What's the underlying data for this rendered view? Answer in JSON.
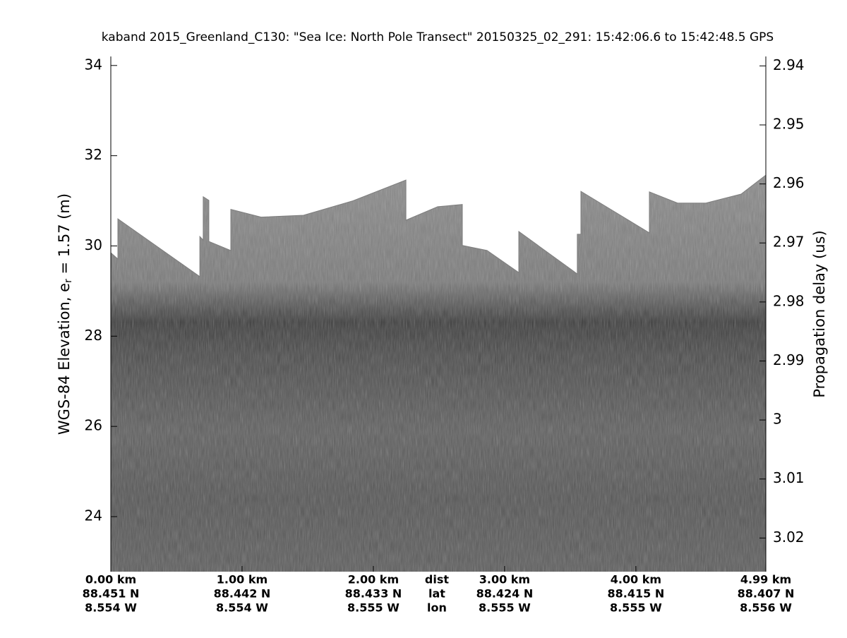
{
  "chart_data": {
    "type": "echogram",
    "title": "kaband 2015_Greenland_C130: \"Sea Ice: North Pole Transect\"  20150325_02_291: 15:42:06.6 to 15:42:48.5 GPS",
    "ylabel": [
      "WGS-84 Elevation, e",
      "r",
      " = 1.57 (m)"
    ],
    "y2label": "Propagation delay (us)",
    "xlim": [
      0,
      4.99
    ],
    "ylim": [
      22.78,
      34.2
    ],
    "y2lim": [
      3.0257,
      2.9384
    ],
    "yticks": [
      24,
      26,
      28,
      30,
      32,
      34
    ],
    "y2ticks": [
      2.94,
      2.95,
      2.96,
      2.97,
      2.98,
      2.99,
      3,
      3.01,
      3.02
    ],
    "xticks": [
      {
        "value": 0,
        "label": "0.00 km"
      },
      {
        "value": 1,
        "label": "1.00 km"
      },
      {
        "value": 2,
        "label": "2.00 km"
      },
      {
        "value": 3,
        "label": "3.00 km"
      },
      {
        "value": 4,
        "label": "4.00 km"
      },
      {
        "value": 4.99,
        "label": "4.99 km"
      }
    ],
    "lat_labels": [
      "88.451 N",
      "88.442 N",
      "88.433 N",
      "88.424 N",
      "88.415 N",
      "88.407 N"
    ],
    "lon_labels": [
      "8.554 W",
      "8.554 W",
      "8.555 W",
      "8.555 W",
      "8.555 W",
      "8.556 W"
    ],
    "row_labels": [
      "dist",
      "lat",
      "lon"
    ],
    "surface": {
      "color": "#7e7e7e",
      "x": [
        0,
        0.054,
        0.054,
        0.678,
        0.678,
        0.704,
        0.704,
        0.747,
        0.747,
        0.914,
        0.914,
        1.145,
        1.468,
        1.844,
        2.248,
        2.248,
        2.49,
        2.678,
        2.678,
        2.866,
        3.108,
        3.108,
        3.554,
        3.554,
        3.581,
        3.581,
        4.103,
        4.103,
        4.318,
        4.533,
        4.802,
        4.99
      ],
      "values": [
        29.85,
        29.71,
        30.6,
        29.32,
        30.21,
        30.13,
        31.09,
        31.01,
        30.1,
        29.9,
        30.81,
        30.64,
        30.68,
        31.0,
        31.46,
        30.57,
        30.87,
        30.92,
        30.01,
        29.9,
        29.41,
        30.32,
        29.38,
        30.26,
        30.26,
        31.21,
        30.29,
        31.2,
        30.95,
        30.95,
        31.15,
        31.57
      ]
    }
  }
}
